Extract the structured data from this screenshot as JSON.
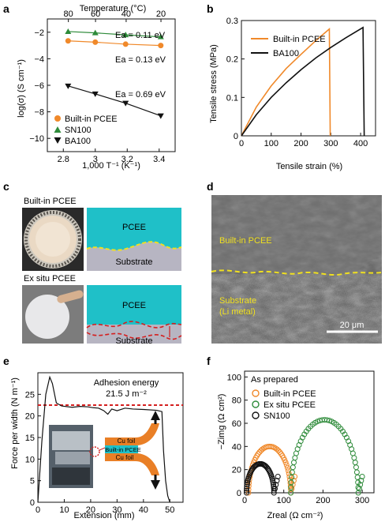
{
  "panels": {
    "a": {
      "letter": "a",
      "top_axis_label": "Temperature (°C)",
      "top_ticks": [
        "80",
        "60",
        "40",
        "20"
      ],
      "ylabel": "log(σ) (S cm⁻¹)",
      "xlabel": "1,000 T⁻¹ (K⁻¹)",
      "ea_labels": [
        "Ea = 0.11 eV",
        "Ea = 0.13 eV",
        "Ea = 0.69 eV"
      ],
      "legend": [
        "Built-in PCEE",
        "SN100",
        "BA100"
      ]
    },
    "b": {
      "letter": "b",
      "ylabel": "Tensile stress (MPa)",
      "xlabel": "Tensile strain (%)",
      "legend": [
        "Built-in PCEE",
        "BA100"
      ]
    },
    "c": {
      "letter": "c",
      "top_title": "Built-in PCEE",
      "bottom_title": "Ex situ PCEE",
      "pcee_label": "PCEE",
      "substrate_label": "Substrate"
    },
    "d": {
      "letter": "d",
      "top_label": "Built-in PCEE",
      "bottom_label_1": "Substrate",
      "bottom_label_2": "(Li metal)",
      "scale_label": "20 μm"
    },
    "e": {
      "letter": "e",
      "ylabel": "Force per width (N m⁻¹)",
      "xlabel": "Extension (mm)",
      "adhesion_title": "Adhesion energy",
      "adhesion_value": "21.5 J m⁻²",
      "cu_foil_top": "Cu foil",
      "builtin_label": "Built-in PCEE",
      "cu_foil_bottom": "Cu foil"
    },
    "f": {
      "letter": "f",
      "legend_title": "As prepared",
      "legend": [
        "Built-in PCEE",
        "Ex situ PCEE",
        "SN100"
      ],
      "ylabel": "−Zimg (Ω cm²)",
      "xlabel": "Zreal (Ω cm⁻²)"
    }
  },
  "colors": {
    "orange": "#f0892a",
    "green": "#2e8b3a",
    "black": "#111111",
    "red": "#d42020",
    "yellow": "#f0e020",
    "teal": "#1fc0c8"
  },
  "chart_data": [
    {
      "id": "a",
      "type": "scatter",
      "xlim": [
        2.7,
        3.5
      ],
      "ylim": [
        -11,
        -1
      ],
      "xticks": [
        2.8,
        3.0,
        3.2,
        3.4
      ],
      "yticks": [
        -2,
        -4,
        -6,
        -8,
        -10
      ],
      "top_axis": {
        "label": "Temperature (°C)",
        "ticks_C": [
          80,
          60,
          40,
          20
        ]
      },
      "series": [
        {
          "name": "Built-in PCEE",
          "marker": "circle",
          "color": "#f0892a",
          "x": [
            2.83,
            3.0,
            3.19,
            3.41
          ],
          "y": [
            -2.65,
            -2.75,
            -2.9,
            -3.0
          ]
        },
        {
          "name": "SN100",
          "marker": "triangle-up",
          "color": "#2e8b3a",
          "x": [
            2.83,
            3.0,
            3.19,
            3.41
          ],
          "y": [
            -1.95,
            -2.05,
            -2.2,
            -2.35
          ]
        },
        {
          "name": "BA100",
          "marker": "triangle-down",
          "color": "#111111",
          "x": [
            2.83,
            3.0,
            3.19,
            3.41
          ],
          "y": [
            -6.05,
            -6.65,
            -7.35,
            -8.3
          ]
        }
      ]
    },
    {
      "id": "b",
      "type": "line",
      "xlim": [
        0,
        450
      ],
      "ylim": [
        0,
        0.3
      ],
      "xticks": [
        0,
        100,
        200,
        300,
        400
      ],
      "yticks": [
        0,
        0.1,
        0.2,
        0.3
      ],
      "series": [
        {
          "name": "Built-in PCEE",
          "color": "#f0892a",
          "x": [
            0,
            50,
            100,
            150,
            200,
            250,
            295,
            298
          ],
          "y": [
            0,
            0.075,
            0.13,
            0.175,
            0.212,
            0.248,
            0.278,
            0
          ]
        },
        {
          "name": "BA100",
          "color": "#111111",
          "x": [
            0,
            50,
            100,
            150,
            200,
            250,
            300,
            350,
            408,
            412
          ],
          "y": [
            0,
            0.055,
            0.1,
            0.138,
            0.172,
            0.203,
            0.23,
            0.255,
            0.282,
            0
          ]
        }
      ]
    },
    {
      "id": "e",
      "type": "line",
      "xlim": [
        0,
        55
      ],
      "ylim": [
        0,
        30
      ],
      "xticks": [
        0,
        10,
        20,
        30,
        40,
        50
      ],
      "yticks": [
        0,
        5,
        10,
        15,
        20,
        25
      ],
      "reference_line": 22.5,
      "series": [
        {
          "name": "force",
          "color": "#111111",
          "x": [
            0,
            1.5,
            3,
            4.5,
            5.5,
            7,
            9,
            13,
            16,
            19,
            21,
            23,
            25,
            26.5,
            28,
            30,
            33,
            36,
            40,
            45,
            47,
            47.6,
            48.4,
            49.2,
            50
          ],
          "y": [
            0,
            14,
            25,
            29,
            27.5,
            23,
            22.3,
            22,
            22.2,
            22.1,
            21.9,
            21.8,
            21.2,
            20.4,
            21.6,
            21.2,
            21.8,
            21.6,
            21.5,
            21.3,
            21.0,
            12,
            5,
            1.5,
            0
          ]
        }
      ]
    },
    {
      "id": "f",
      "type": "scatter",
      "xlim": [
        0,
        330
      ],
      "ylim": [
        0,
        105
      ],
      "xticks": [
        0,
        100,
        200,
        300
      ],
      "yticks": [
        0,
        20,
        40,
        60,
        80,
        100
      ],
      "series": [
        {
          "name": "Built-in PCEE",
          "color": "#f0892a",
          "shape": "semicircle",
          "start": 10,
          "end": 118,
          "peak": 40
        },
        {
          "name": "Ex situ PCEE",
          "color": "#2e8b3a",
          "shape": "semicircle",
          "start": 118,
          "end": 290,
          "peak": 63
        },
        {
          "name": "SN100",
          "color": "#111111",
          "shape": "semicircle",
          "start": 5,
          "end": 75,
          "peak": 25
        }
      ]
    }
  ]
}
